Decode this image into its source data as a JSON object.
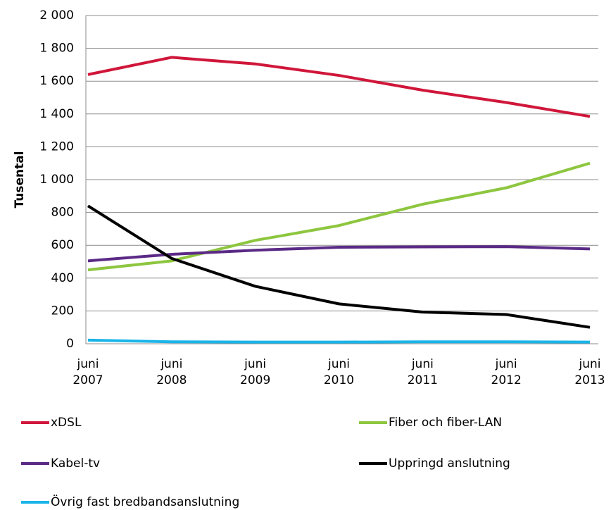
{
  "chart_data": {
    "type": "line",
    "y_label": "Tusental",
    "categories": [
      "juni\n2007",
      "juni\n2008",
      "juni\n2009",
      "juni\n2010",
      "juni\n2011",
      "juni\n2012",
      "juni\n2013"
    ],
    "series": [
      {
        "name": "xDSL",
        "color": "#d0163a",
        "values": [
          1640,
          1745,
          1705,
          1635,
          1545,
          1470,
          1385
        ]
      },
      {
        "name": "Fiber och fiber-LAN",
        "color": "#8dc63f",
        "values": [
          450,
          505,
          630,
          720,
          850,
          950,
          1100
        ]
      },
      {
        "name": "Kabel-tv",
        "color": "#5b2a86",
        "values": [
          505,
          545,
          570,
          588,
          590,
          592,
          578
        ]
      },
      {
        "name": "Uppringd anslutning",
        "color": "#000000",
        "values": [
          840,
          520,
          350,
          243,
          193,
          178,
          100
        ]
      },
      {
        "name": "Övrig fast bredbandsanslutning",
        "color": "#1ab4e8",
        "values": [
          22,
          12,
          10,
          10,
          12,
          12,
          10
        ]
      }
    ],
    "ylim": [
      0,
      2000
    ],
    "yticks": [
      0,
      200,
      400,
      600,
      800,
      {
        "value": 1000,
        "label": "1 000"
      },
      {
        "value": 1200,
        "label": "1 200"
      },
      {
        "value": 1400,
        "label": "1 400"
      },
      {
        "value": 1600,
        "label": "1 600"
      },
      {
        "value": 1800,
        "label": "1 800"
      },
      {
        "value": 2000,
        "label": "2 000"
      }
    ],
    "grid": true
  }
}
